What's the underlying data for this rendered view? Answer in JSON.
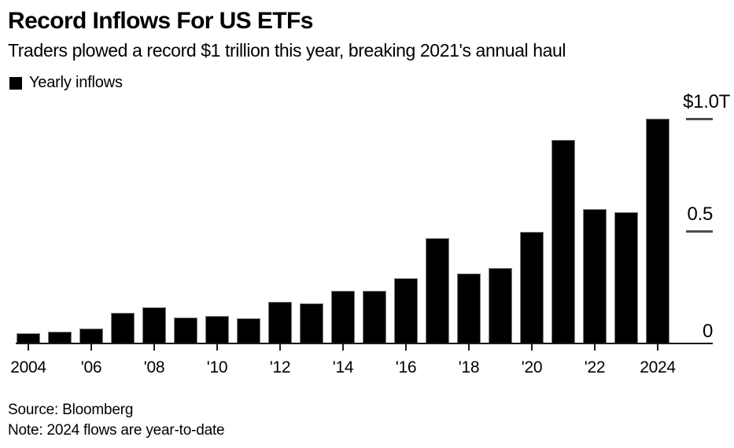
{
  "chart_data": {
    "type": "bar",
    "title": "Record Inflows For US ETFs",
    "subtitle": "Traders plowed a record $1 trillion this year, breaking 2021's annual haul",
    "legend": [
      {
        "label": "Yearly inflows",
        "color": "#000000"
      }
    ],
    "unit": "USD trillions",
    "categories": [
      2004,
      2005,
      2006,
      2007,
      2008,
      2009,
      2010,
      2011,
      2012,
      2013,
      2014,
      2015,
      2016,
      2017,
      2018,
      2019,
      2020,
      2021,
      2022,
      2023,
      2024
    ],
    "values": [
      0.049,
      0.057,
      0.069,
      0.142,
      0.166,
      0.119,
      0.125,
      0.117,
      0.189,
      0.182,
      0.237,
      0.24,
      0.293,
      0.473,
      0.317,
      0.34,
      0.5,
      0.914,
      0.602,
      0.589,
      1.006
    ],
    "x_tick_labels": [
      "2004",
      "'06",
      "'08",
      "'10",
      "'12",
      "'14",
      "'16",
      "'18",
      "'20",
      "'22",
      "2024"
    ],
    "y_ticks": [
      {
        "label": "$1.0T",
        "value": 1.0,
        "dash": true
      },
      {
        "label": "0.5",
        "value": 0.5,
        "dash": true
      },
      {
        "label": "0",
        "value": 0.0,
        "dash": false
      }
    ],
    "ylim": [
      0,
      1.05
    ],
    "grid": "off",
    "legend_position": "top-left",
    "bar_color": "#000000",
    "axis_color": "#1a1a1a",
    "dash_color": "#4d4d4d",
    "background_color": "#ffffff",
    "source": "Source: Bloomberg",
    "note": "Note: 2024 flows are year-to-date"
  }
}
